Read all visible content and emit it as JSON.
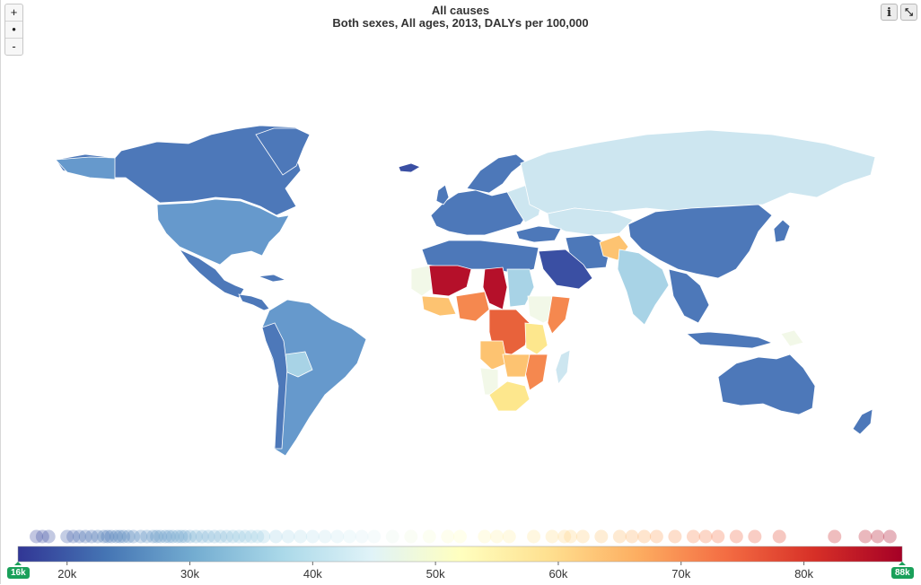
{
  "title": "All causes",
  "subtitle": "Both sexes, All ages, 2013, DALYs per 100,000",
  "controls": {
    "zoom_in": "+",
    "reset": "•",
    "zoom_out": "-",
    "info": "i",
    "shrink": "⤡"
  },
  "legend": {
    "min_handle": "16k",
    "max_handle": "88k",
    "range": [
      16,
      88
    ],
    "ticks": [
      "20k",
      "30k",
      "40k",
      "50k",
      "60k",
      "70k",
      "80k"
    ],
    "tick_values": [
      20,
      30,
      40,
      50,
      60,
      70,
      80
    ],
    "colors": [
      "#313695",
      "#4575b4",
      "#74add1",
      "#abd9e9",
      "#e0f3f8",
      "#ffffbf",
      "#fee090",
      "#fdae61",
      "#f46d43",
      "#d73027",
      "#a50026"
    ],
    "country_dots": [
      17.5,
      18,
      18.5,
      20,
      20.5,
      21,
      21.5,
      22,
      22.5,
      23,
      23.3,
      23.6,
      24,
      24.3,
      24.6,
      25,
      25.4,
      26,
      26.5,
      27,
      27.3,
      27.6,
      28,
      28.3,
      28.6,
      29,
      29.3,
      29.6,
      30,
      30.5,
      31,
      31.5,
      32,
      32.5,
      33,
      33.5,
      34,
      34.5,
      35,
      35.5,
      36,
      37,
      38,
      39,
      40,
      41,
      42,
      43,
      44,
      45,
      46.5,
      48,
      49.5,
      51,
      52,
      54,
      55,
      56,
      58,
      59.5,
      60.5,
      61,
      62,
      63.5,
      65,
      66,
      67,
      68,
      69.5,
      71,
      72,
      73,
      74.5,
      76,
      78,
      82.5,
      85,
      86,
      87
    ]
  },
  "map": {
    "colors": {
      "darkblue": "#3a4fa3",
      "blue": "#4d78b9",
      "midblue": "#6699cc",
      "lightblue": "#a8d3e6",
      "paleblue": "#cde6f0",
      "pale": "#f2f8e8",
      "yellow": "#fde78d",
      "lightorange": "#fdc371",
      "orange": "#f5884f",
      "redorange": "#e8623b",
      "darkred": "#b5102a"
    }
  }
}
